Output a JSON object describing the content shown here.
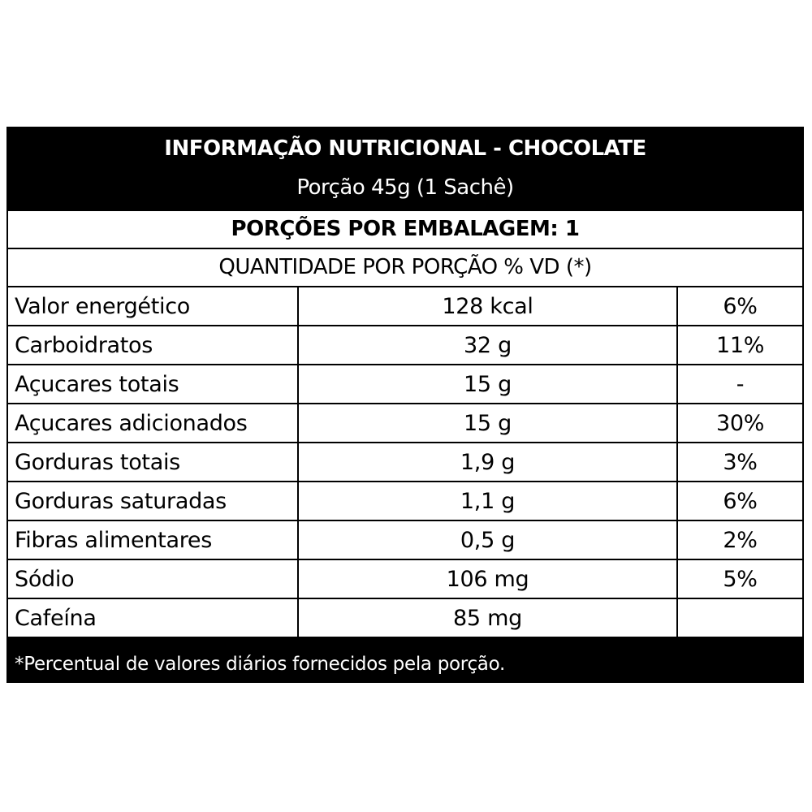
{
  "header": {
    "title": "INFORMAÇÃO NUTRICIONAL - CHOCOLATE",
    "portion": "Porção 45g (1 Sachê)"
  },
  "servings_per_package": "PORÇÕES POR EMBALAGEM: 1",
  "quantity_header": "QUANTIDADE POR PORÇÃO % VD (*)",
  "rows": [
    {
      "name": "Valor energético",
      "amount": "128 kcal",
      "vd": "6%"
    },
    {
      "name": "Carboidratos",
      "amount": "32 g",
      "vd": "11%"
    },
    {
      "name": "Açucares totais",
      "amount": "15 g",
      "vd": "-"
    },
    {
      "name": "Açucares adicionados",
      "amount": "15 g",
      "vd": "30%"
    },
    {
      "name": "Gorduras totais",
      "amount": "1,9 g",
      "vd": "3%"
    },
    {
      "name": "Gorduras saturadas",
      "amount": "1,1 g",
      "vd": "6%"
    },
    {
      "name": "Fibras alimentares",
      "amount": "0,5 g",
      "vd": "2%"
    },
    {
      "name": "Sódio",
      "amount": "106 mg",
      "vd": "5%"
    },
    {
      "name": "Cafeína",
      "amount": "85 mg",
      "vd": ""
    }
  ],
  "footnote": "*Percentual de valores diários fornecidos pela porção."
}
